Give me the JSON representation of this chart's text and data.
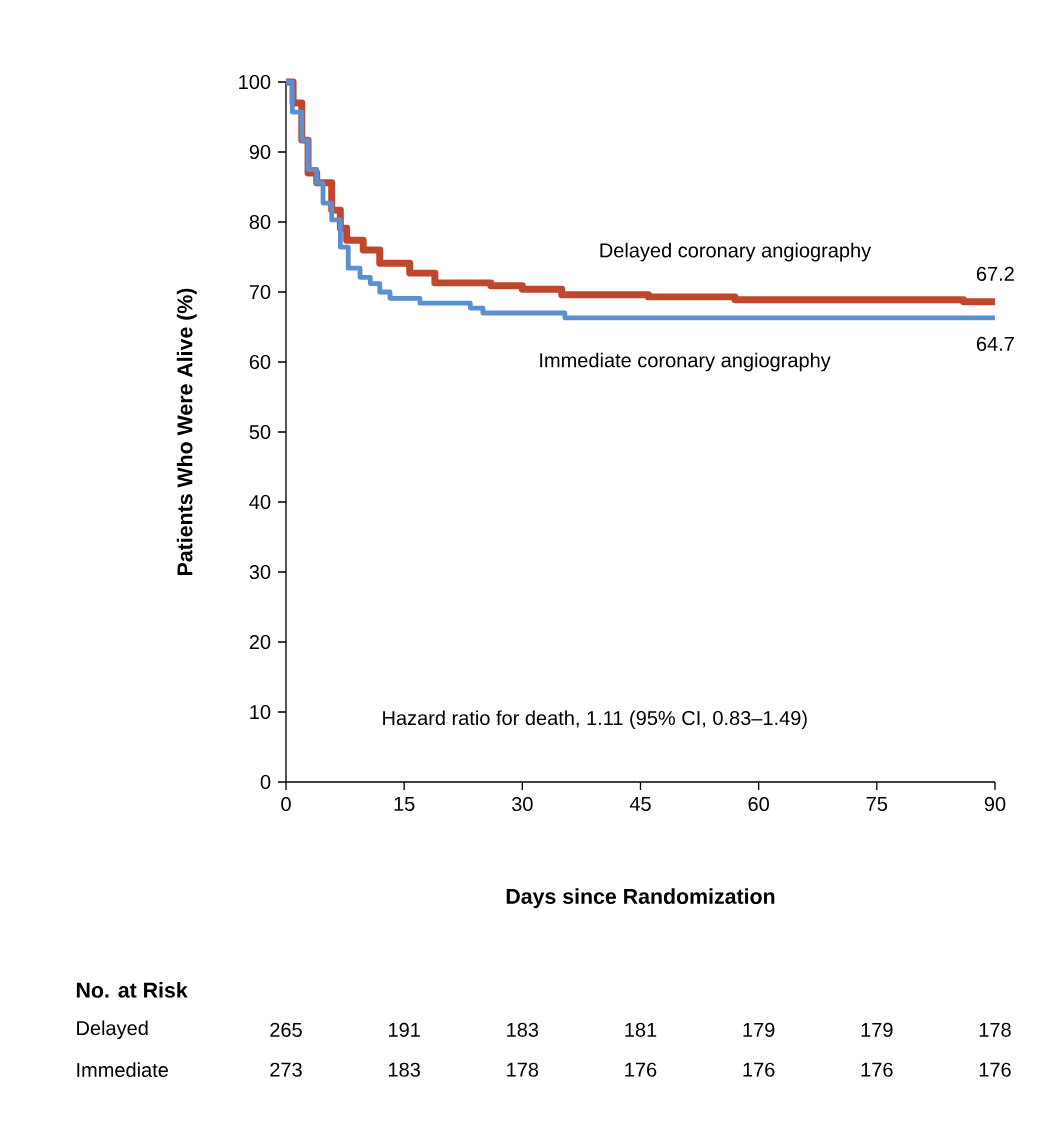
{
  "chart_data": {
    "type": "step",
    "xlabel": "Days since Randomization",
    "ylabel": "Patients Who Were Alive (%)",
    "xlim": [
      0,
      90
    ],
    "ylim": [
      0,
      100
    ],
    "xticks": [
      0,
      15,
      30,
      45,
      60,
      75,
      90
    ],
    "yticks": [
      0,
      10,
      20,
      30,
      40,
      50,
      60,
      70,
      80,
      90,
      100
    ],
    "grid": false,
    "marker": "none",
    "line_style": "solid",
    "series": [
      {
        "name": "Delayed coronary angiography",
        "color": "#c0462e",
        "x": [
          0,
          0.9,
          2.0,
          2.8,
          3.9,
          5.8,
          6.9,
          7.7,
          9.8,
          11.9,
          15.7,
          18.9,
          26,
          30,
          35,
          46,
          57,
          86,
          90
        ],
        "values": [
          100,
          97,
          91.7,
          87,
          85.6,
          81.7,
          79.1,
          77.4,
          76,
          74.1,
          72.7,
          71.3,
          70.9,
          70.4,
          69.6,
          69.3,
          68.9,
          68.6,
          68.6
        ]
      },
      {
        "name": "Immediate coronary angiography",
        "color": "#5b8fd0",
        "x": [
          0,
          0.8,
          2.0,
          2.8,
          3.9,
          4.7,
          5.8,
          6.9,
          7.9,
          9.4,
          10.7,
          11.9,
          13.2,
          17,
          23.4,
          25,
          35.4,
          90
        ],
        "values": [
          100,
          95.7,
          91.7,
          87.5,
          85.6,
          82.7,
          80.3,
          76.4,
          73.4,
          72.1,
          71.2,
          70,
          69.1,
          68.4,
          67.7,
          67.0,
          66.3,
          66.3
        ]
      }
    ],
    "annotations": [
      "Hazard ratio for death, 1.11 (95% CI, 0.83–1.49)",
      "67.2",
      "64.7",
      "No. at Risk",
      "Delayed",
      "Immediate",
      "265",
      "191",
      "183",
      "181",
      "179",
      "179",
      "178",
      "273",
      "183",
      "178",
      "176",
      "176",
      "176",
      "176"
    ]
  }
}
